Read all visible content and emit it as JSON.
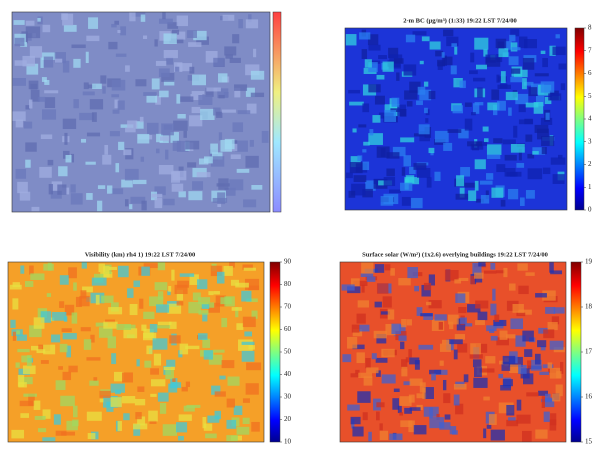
{
  "chart_data": [
    {
      "type": "heatmap"
    },
    {
      "type": "heatmap",
      "title": "2-m BC (µg/m³) (1:33) 19:22 LST 7/24/00",
      "clim": [
        0,
        8
      ],
      "colorbar_ticks": [
        0,
        1,
        2,
        3,
        4,
        5,
        6,
        7,
        8
      ]
    },
    {
      "type": "heatmap",
      "title": "Visibility (km) rh4 1) 19:22 LST 7/24/00",
      "clim": [
        10,
        90
      ],
      "colorbar_ticks": [
        10,
        20,
        30,
        40,
        50,
        60,
        70,
        80,
        90
      ]
    },
    {
      "type": "heatmap",
      "title": "Surface solar (W/m²) (1x2.6) overlying buildings 19:22 LST 7/24/00",
      "clim": [
        15,
        19
      ],
      "colorbar_ticks": [
        15,
        16,
        17,
        18,
        19
      ]
    }
  ]
}
